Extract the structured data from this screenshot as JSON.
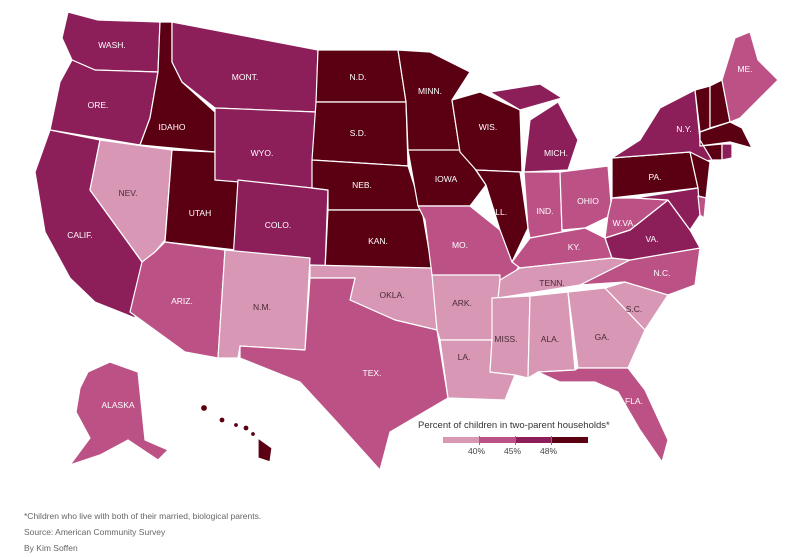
{
  "colors": {
    "lt40": "#d797b5",
    "r40_45": "#bc5185",
    "r45_48": "#8c1f5a",
    "ge48": "#5a0012"
  },
  "states": {
    "WA": {
      "label": "WASH.",
      "bin": "r45_48"
    },
    "OR": {
      "label": "ORE.",
      "bin": "r45_48"
    },
    "CA": {
      "label": "CALIF.",
      "bin": "r45_48"
    },
    "ID": {
      "label": "IDAHO",
      "bin": "ge48"
    },
    "NV": {
      "label": "NEV.",
      "bin": "lt40"
    },
    "UT": {
      "label": "UTAH",
      "bin": "ge48"
    },
    "AZ": {
      "label": "ARIZ.",
      "bin": "r40_45"
    },
    "MT": {
      "label": "MONT.",
      "bin": "r45_48"
    },
    "WY": {
      "label": "WYO.",
      "bin": "r45_48"
    },
    "CO": {
      "label": "COLO.",
      "bin": "r45_48"
    },
    "NM": {
      "label": "N.M.",
      "bin": "lt40"
    },
    "ND": {
      "label": "N.D.",
      "bin": "ge48"
    },
    "SD": {
      "label": "S.D.",
      "bin": "ge48"
    },
    "NE": {
      "label": "NEB.",
      "bin": "ge48"
    },
    "KS": {
      "label": "KAN.",
      "bin": "ge48"
    },
    "OK": {
      "label": "OKLA.",
      "bin": "lt40"
    },
    "TX": {
      "label": "TEX.",
      "bin": "r40_45"
    },
    "MN": {
      "label": "MINN.",
      "bin": "ge48"
    },
    "IA": {
      "label": "IOWA",
      "bin": "ge48"
    },
    "MO": {
      "label": "MO.",
      "bin": "r40_45"
    },
    "AR": {
      "label": "ARK.",
      "bin": "lt40"
    },
    "LA": {
      "label": "LA.",
      "bin": "lt40"
    },
    "WI": {
      "label": "WIS.",
      "bin": "ge48"
    },
    "IL": {
      "label": "ILL.",
      "bin": "ge48"
    },
    "MI": {
      "label": "MICH.",
      "bin": "r45_48"
    },
    "IN": {
      "label": "IND.",
      "bin": "r40_45"
    },
    "OH": {
      "label": "OHIO",
      "bin": "r40_45"
    },
    "KY": {
      "label": "KY.",
      "bin": "r40_45"
    },
    "TN": {
      "label": "TENN.",
      "bin": "lt40"
    },
    "MS": {
      "label": "MISS.",
      "bin": "lt40"
    },
    "AL": {
      "label": "ALA.",
      "bin": "lt40"
    },
    "GA": {
      "label": "GA.",
      "bin": "lt40"
    },
    "FL": {
      "label": "FLA.",
      "bin": "r40_45"
    },
    "SC": {
      "label": "S.C.",
      "bin": "lt40"
    },
    "NC": {
      "label": "N.C.",
      "bin": "r40_45"
    },
    "VA": {
      "label": "VA.",
      "bin": "r45_48"
    },
    "WV": {
      "label": "W.VA.",
      "bin": "r40_45"
    },
    "PA": {
      "label": "PA.",
      "bin": "ge48"
    },
    "NY": {
      "label": "N.Y.",
      "bin": "r45_48"
    },
    "NJ": {
      "label": "",
      "bin": "ge48"
    },
    "DE": {
      "label": "",
      "bin": "r40_45"
    },
    "MD": {
      "label": "",
      "bin": "r45_48"
    },
    "VT": {
      "label": "",
      "bin": "ge48"
    },
    "NH": {
      "label": "",
      "bin": "ge48"
    },
    "ME": {
      "label": "ME.",
      "bin": "r40_45"
    },
    "MA": {
      "label": "",
      "bin": "ge48"
    },
    "CT": {
      "label": "",
      "bin": "ge48"
    },
    "RI": {
      "label": "",
      "bin": "r45_48"
    },
    "AK": {
      "label": "ALASKA",
      "bin": "r40_45"
    },
    "HI": {
      "label": "",
      "bin": "ge48"
    }
  },
  "legend": {
    "title": "Percent of children in two-parent households*",
    "ticks": [
      "40%",
      "45%",
      "48%"
    ]
  },
  "footnote": "*Children who live with both of their married, biological parents.",
  "source": "Source: American Community Survey",
  "byline": "By Kim Soffen"
}
